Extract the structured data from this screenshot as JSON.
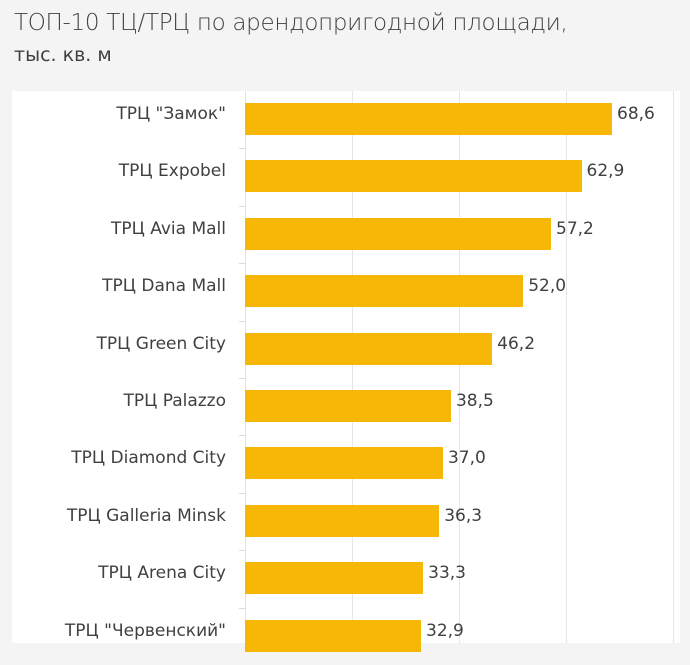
{
  "title": "ТОП-10 ТЦ/ТРЦ по арендопригодной площади,",
  "subtitle": "тыс. кв. м",
  "bar_color": "#f7b707",
  "chart_data": {
    "type": "bar",
    "orientation": "horizontal",
    "title": "ТОП-10 ТЦ/ТРЦ по арендопригодной площади, тыс. кв. м",
    "xlabel": "",
    "ylabel": "",
    "xlim": [
      0,
      80
    ],
    "grid": true,
    "gridline_step": 20,
    "legend": null,
    "categories": [
      "ТРЦ \"Замок\"",
      "ТРЦ Expobel",
      "ТРЦ Avia Mall",
      "ТРЦ Dana Mall",
      "ТРЦ Green City",
      "ТРЦ Palazzo",
      "ТРЦ Diamond City",
      "ТРЦ Galleria Minsk",
      "ТРЦ Arena City",
      "ТРЦ \"Червенский\""
    ],
    "values": [
      68.6,
      62.9,
      57.2,
      52.0,
      46.2,
      38.5,
      37.0,
      36.3,
      33.3,
      32.9
    ],
    "value_labels": [
      "68,6",
      "62,9",
      "57,2",
      "52,0",
      "46,2",
      "38,5",
      "37,0",
      "36,3",
      "33,3",
      "32,9"
    ]
  }
}
